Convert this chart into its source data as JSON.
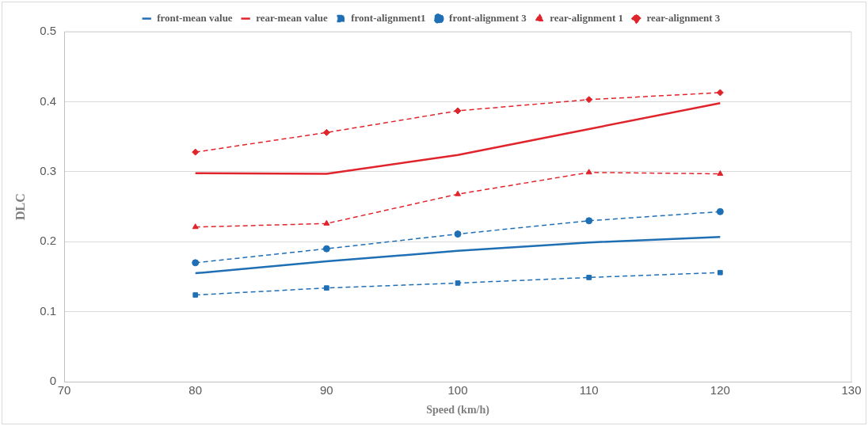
{
  "chart_data": {
    "type": "line",
    "xlabel": "Speed (km/h)",
    "ylabel": "DLC",
    "x": [
      80,
      90,
      100,
      110,
      120
    ],
    "xlim": [
      70,
      130
    ],
    "xticks": [
      70,
      80,
      90,
      100,
      110,
      120,
      130
    ],
    "ylim": [
      0,
      0.5
    ],
    "yticks": [
      0,
      0.1,
      0.2,
      0.3,
      0.4,
      0.5
    ],
    "grid": "y",
    "legend": "top",
    "series": [
      {
        "name": "front-mean value",
        "color": "#1f6fb5",
        "marker": "none",
        "line_style": "solid",
        "values": [
          0.155,
          0.172,
          0.187,
          0.199,
          0.207
        ]
      },
      {
        "name": "rear-mean value",
        "color": "#e0242b",
        "marker": "none",
        "line_style": "solid",
        "values": [
          0.298,
          0.297,
          0.324,
          0.361,
          0.398
        ]
      },
      {
        "name": "front-alignment1",
        "color": "#1f6fb5",
        "marker": "square",
        "line_style": "dashed",
        "values": [
          0.124,
          0.134,
          0.141,
          0.149,
          0.156
        ]
      },
      {
        "name": "front-alignment 3",
        "color": "#1f6fb5",
        "marker": "circle",
        "line_style": "dashed",
        "values": [
          0.17,
          0.19,
          0.211,
          0.23,
          0.243
        ]
      },
      {
        "name": "rear-alignment 1",
        "color": "#e0242b",
        "marker": "triangle",
        "line_style": "dashed",
        "values": [
          0.221,
          0.226,
          0.268,
          0.299,
          0.297
        ]
      },
      {
        "name": "rear-alignment 3",
        "color": "#e0242b",
        "marker": "diamond",
        "line_style": "dashed",
        "values": [
          0.328,
          0.356,
          0.387,
          0.403,
          0.413
        ]
      }
    ]
  }
}
